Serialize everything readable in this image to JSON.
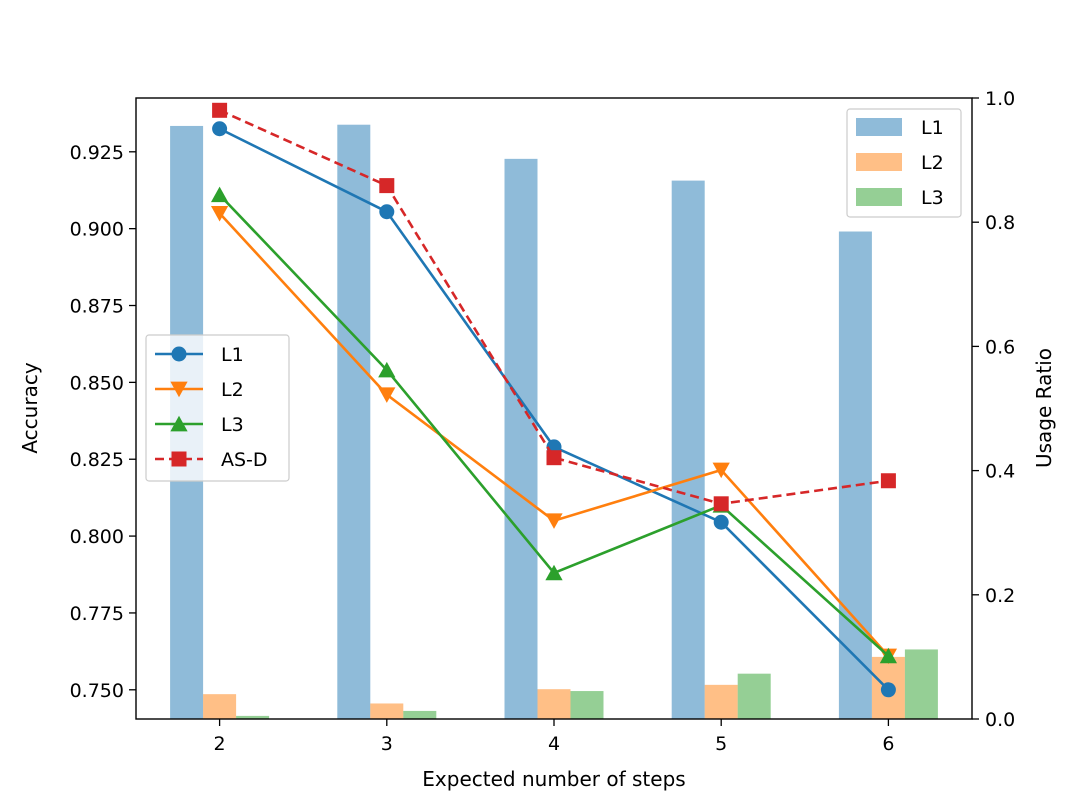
{
  "chart_data": {
    "type": "bar+line",
    "xlabel": "Expected number of steps",
    "ylabel_left": "Accuracy",
    "ylabel_right": "Usage Ratio",
    "categories": [
      "2",
      "3",
      "4",
      "5",
      "6"
    ],
    "x": [
      2,
      3,
      4,
      5,
      6
    ],
    "xlim": [
      1.5,
      6.5
    ],
    "ylim_left": [
      0.7405,
      0.9425
    ],
    "yticks_left": [
      "0.750",
      "0.775",
      "0.800",
      "0.825",
      "0.850",
      "0.875",
      "0.900",
      "0.925"
    ],
    "ylim_right": [
      0.0,
      1.0
    ],
    "yticks_right": [
      "0.0",
      "0.2",
      "0.4",
      "0.6",
      "0.8",
      "1.0"
    ],
    "bar_series": [
      {
        "name": "L1",
        "color": "#1f77b4",
        "values": [
          0.955,
          0.957,
          0.902,
          0.867,
          0.785
        ]
      },
      {
        "name": "L2",
        "color": "#ff7f0e",
        "values": [
          0.04,
          0.025,
          0.048,
          0.055,
          0.1
        ]
      },
      {
        "name": "L3",
        "color": "#2ca02c",
        "values": [
          0.005,
          0.013,
          0.045,
          0.073,
          0.112
        ]
      }
    ],
    "line_series": [
      {
        "name": "L1",
        "color": "#1f77b4",
        "marker": "circle",
        "dashed": false,
        "values": [
          0.9325,
          0.9055,
          0.829,
          0.8045,
          0.75
        ]
      },
      {
        "name": "L2",
        "color": "#ff7f0e",
        "marker": "triangle-down",
        "dashed": false,
        "values": [
          0.905,
          0.846,
          0.805,
          0.8215,
          0.761
        ]
      },
      {
        "name": "L3",
        "color": "#2ca02c",
        "marker": "triangle-up",
        "dashed": false,
        "values": [
          0.911,
          0.854,
          0.788,
          0.81,
          0.761
        ]
      },
      {
        "name": "AS-D",
        "color": "#d62728",
        "marker": "square",
        "dashed": true,
        "values": [
          0.9385,
          0.914,
          0.8255,
          0.8105,
          0.818
        ]
      }
    ],
    "legend_bars_position": "upper-right",
    "legend_lines_position": "center-left",
    "grid": false
  }
}
